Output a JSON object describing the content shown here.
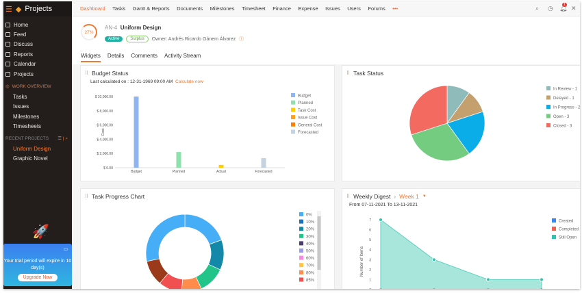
{
  "sidebar": {
    "title": "Projects",
    "items": [
      "Home",
      "Feed",
      "Discuss",
      "Reports",
      "Calendar",
      "Projects"
    ],
    "work_overview": "WORK OVERVIEW",
    "work_items": [
      "Tasks",
      "Issues",
      "Milestones",
      "Timesheets"
    ],
    "recent_label": "RECENT PROJECTS",
    "recent": [
      "Uniform Design",
      "Graphic Novel"
    ],
    "trial_text": "Your trial period will expire in 10 day(s)",
    "upgrade": "Upgrade Now"
  },
  "topnav": {
    "items": [
      "Dashboard",
      "Tasks",
      "Gantt & Reports",
      "Documents",
      "Milestones",
      "Timesheet",
      "Finance",
      "Expense",
      "Issues",
      "Users",
      "Forums",
      "•••"
    ],
    "notification_count": "1"
  },
  "project": {
    "progress": "27%",
    "id": "AN-4",
    "name": "Uniform Design",
    "status": "Active",
    "budget_status": "Surplus",
    "owner": "Owner: Andrés Ricardo Gánem Álvarez"
  },
  "tabs": [
    "Widgets",
    "Details",
    "Comments",
    "Activity Stream"
  ],
  "colors": {
    "accent": "#f07a35",
    "active": "#20b2a4"
  },
  "budget": {
    "title": "Budget Status",
    "last_calc": "Last calculated on : 12-31-1969 09:00 AM",
    "calc_now": "Calculate now"
  },
  "task_status": {
    "title": "Task Status"
  },
  "task_progress": {
    "title": "Task Progress Chart"
  },
  "weekly": {
    "title": "Weekly Digest",
    "week": "Week 1",
    "range": "From 07-11-2021 To 13-11-2021"
  },
  "chart_data": [
    {
      "type": "bar",
      "title": "Budget Status",
      "ylabel": "Cost",
      "ylim": [
        0,
        10000
      ],
      "yticks": [
        "$ 0.00",
        "$ 2,000.00",
        "$ 4,000.00",
        "$ 6,000.00",
        "$ 8,000.00",
        "$ 10,000.00"
      ],
      "categories": [
        "Budget",
        "Planned",
        "Actual",
        "Forecasted"
      ],
      "values": [
        10000,
        2200,
        400,
        1350
      ],
      "bar_colors": [
        "#8fb4f0",
        "#8ee0ac",
        "#ffcc00",
        "#c3d3e0"
      ],
      "legend": [
        {
          "name": "Budget",
          "color": "#8fb4f0"
        },
        {
          "name": "Planned",
          "color": "#8ee0ac"
        },
        {
          "name": "Task Cost",
          "color": "#ffcc00"
        },
        {
          "name": "Issue Cost",
          "color": "#ff9f1a"
        },
        {
          "name": "General Cost",
          "color": "#ff8000"
        },
        {
          "name": "Forecasted",
          "color": "#c3d3e0"
        }
      ],
      "legend_position": "right"
    },
    {
      "type": "pie",
      "title": "Task Status",
      "slices": [
        {
          "name": "In Review - 1",
          "value": 1,
          "color": "#8fbcbb"
        },
        {
          "name": "Delayed - 1",
          "value": 1,
          "color": "#c4a06e"
        },
        {
          "name": "In Progress - 2",
          "value": 2,
          "color": "#0aade8"
        },
        {
          "name": "Open - 3",
          "value": 3,
          "color": "#74cc80"
        },
        {
          "name": "Closed - 3",
          "value": 3,
          "color": "#f36b60"
        }
      ],
      "legend_position": "right"
    },
    {
      "type": "pie",
      "title": "Task Progress Chart",
      "donut": true,
      "legend": [
        {
          "name": "0%",
          "color": "#46aef7"
        },
        {
          "name": "10%",
          "color": "#1a6fc0"
        },
        {
          "name": "20%",
          "color": "#1488a8"
        },
        {
          "name": "30%",
          "color": "#22c48a"
        },
        {
          "name": "40%",
          "color": "#4a3c6e"
        },
        {
          "name": "50%",
          "color": "#9a9af5"
        },
        {
          "name": "60%",
          "color": "#f58ae0"
        },
        {
          "name": "70%",
          "color": "#ffc445"
        },
        {
          "name": "80%",
          "color": "#ff8c4a"
        },
        {
          "name": "85%",
          "color": "#f05050"
        }
      ],
      "slices": [
        {
          "name": "0%",
          "value": 70,
          "color": "#46aef7"
        },
        {
          "name": "20%",
          "value": 45,
          "color": "#1488a8"
        },
        {
          "name": "30%",
          "value": 40,
          "color": "#22c48a"
        },
        {
          "name": "80%",
          "value": 30,
          "color": "#ff8c4a"
        },
        {
          "name": "85%",
          "value": 35,
          "color": "#f05050"
        },
        {
          "name": "",
          "value": 38,
          "color": "#9a3a1a"
        },
        {
          "name": "0%",
          "value": 102,
          "color": "#46aef7"
        }
      ],
      "legend_position": "right"
    },
    {
      "type": "area",
      "title": "Weekly Digest",
      "ylabel": "Number of Items",
      "ylim": [
        0,
        7
      ],
      "x": [
        1,
        2,
        3,
        4
      ],
      "series": [
        {
          "name": "Created",
          "color": "#3a86f0",
          "values": [
            0,
            0,
            0,
            0
          ]
        },
        {
          "name": "Completed",
          "color": "#f06050",
          "values": [
            0,
            0,
            0,
            0
          ]
        },
        {
          "name": "Still Open",
          "color": "#2ec4b0",
          "values": [
            7,
            3,
            1,
            1
          ]
        }
      ],
      "legend_position": "right"
    }
  ]
}
